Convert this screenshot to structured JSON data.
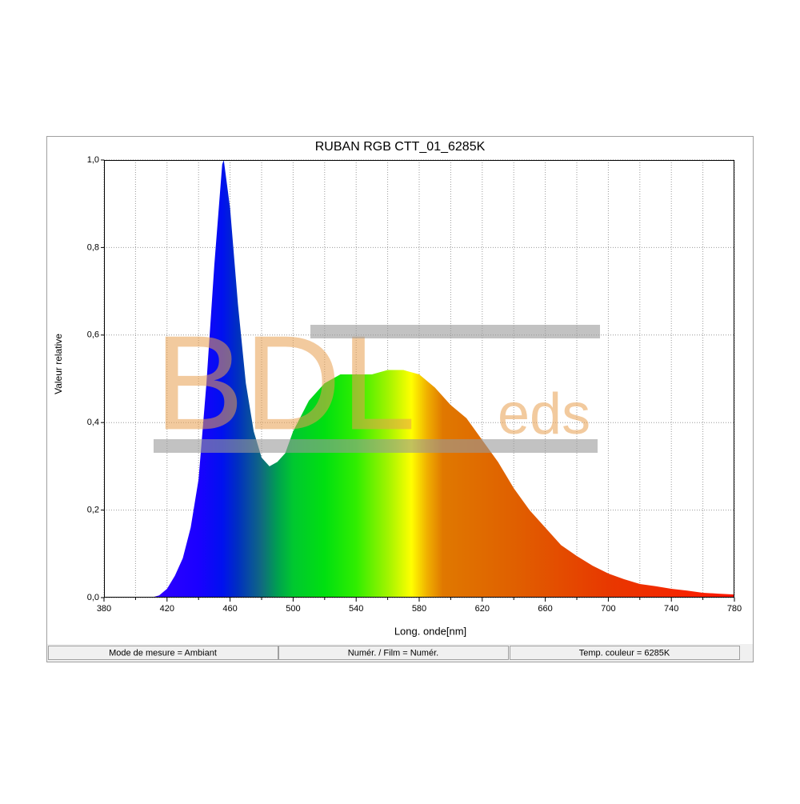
{
  "chart_data": {
    "type": "area",
    "title": "RUBAN RGB CTT_01_6285K",
    "x_label": "Long. onde[nm]",
    "y_label": "Valeur relative",
    "x": [
      380,
      390,
      400,
      410,
      415,
      420,
      425,
      430,
      435,
      440,
      445,
      450,
      455,
      456,
      460,
      465,
      470,
      475,
      480,
      485,
      490,
      495,
      500,
      510,
      520,
      530,
      540,
      550,
      560,
      570,
      580,
      590,
      600,
      610,
      620,
      630,
      640,
      650,
      660,
      670,
      680,
      690,
      700,
      710,
      720,
      730,
      740,
      750,
      760,
      770,
      780
    ],
    "values": [
      0,
      0,
      0,
      0,
      0.005,
      0.02,
      0.05,
      0.09,
      0.16,
      0.27,
      0.49,
      0.76,
      0.99,
      1.0,
      0.89,
      0.67,
      0.49,
      0.38,
      0.32,
      0.3,
      0.31,
      0.33,
      0.38,
      0.45,
      0.49,
      0.51,
      0.51,
      0.51,
      0.52,
      0.52,
      0.51,
      0.48,
      0.44,
      0.41,
      0.36,
      0.31,
      0.25,
      0.2,
      0.16,
      0.12,
      0.095,
      0.073,
      0.055,
      0.042,
      0.031,
      0.026,
      0.02,
      0.016,
      0.011,
      0.009,
      0.007
    ],
    "gradient": [
      {
        "x": 400,
        "color": "#3a00ff"
      },
      {
        "x": 440,
        "color": "#1a00ff"
      },
      {
        "x": 455,
        "color": "#0010f0"
      },
      {
        "x": 465,
        "color": "#0030c0"
      },
      {
        "x": 480,
        "color": "#106a80"
      },
      {
        "x": 490,
        "color": "#00a050"
      },
      {
        "x": 500,
        "color": "#00c830"
      },
      {
        "x": 520,
        "color": "#00e010"
      },
      {
        "x": 540,
        "color": "#30ee00"
      },
      {
        "x": 560,
        "color": "#a0f400"
      },
      {
        "x": 575,
        "color": "#ffff00"
      },
      {
        "x": 585,
        "color": "#f0b000"
      },
      {
        "x": 595,
        "color": "#e07800"
      },
      {
        "x": 640,
        "color": "#e06000"
      },
      {
        "x": 700,
        "color": "#e83800"
      },
      {
        "x": 780,
        "color": "#ff1800"
      }
    ],
    "xlim": [
      380,
      780
    ],
    "ylim": [
      0,
      1
    ],
    "xticks": [
      380,
      420,
      460,
      500,
      540,
      580,
      620,
      660,
      700,
      740,
      780
    ],
    "xminorticks": [
      400,
      440,
      480,
      520,
      560,
      600,
      640,
      680,
      720,
      760
    ],
    "yticks": [
      {
        "value": 0,
        "label": "0,0"
      },
      {
        "value": 0.2,
        "label": "0,2"
      },
      {
        "value": 0.4,
        "label": "0,4"
      },
      {
        "value": 0.6,
        "label": "0,6"
      },
      {
        "value": 0.8,
        "label": "0,8"
      },
      {
        "value": 1,
        "label": "1,0"
      }
    ],
    "grid": true,
    "watermark": {
      "main": "BDL",
      "suffix": "eds"
    },
    "status": [
      "Mode de mesure = Ambiant",
      "Numér. / Film = Numér.",
      "Temp. couleur = 6285K"
    ]
  }
}
